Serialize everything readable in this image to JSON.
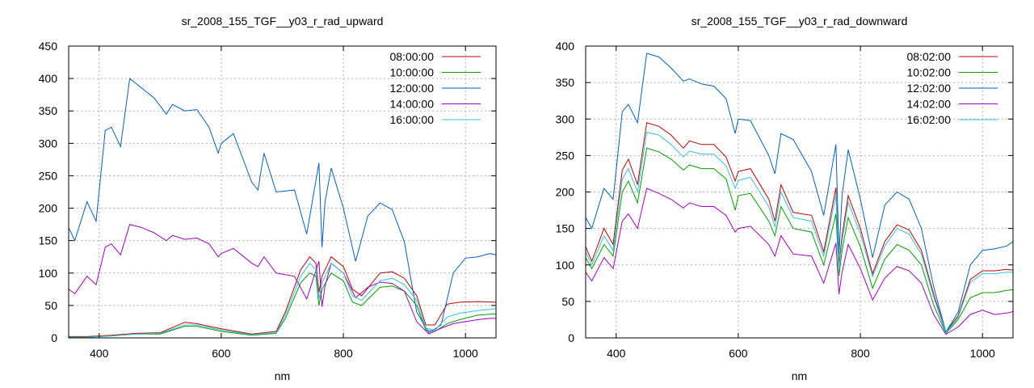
{
  "chart_data": [
    {
      "type": "line",
      "title": "sr_2008_155_TGF__y03_r_rad_upward",
      "xlabel": "nm",
      "ylabel": "",
      "xlim": [
        350,
        1050
      ],
      "ylim": [
        0,
        450
      ],
      "xticks": [
        400,
        600,
        800,
        1000
      ],
      "yticks": [
        0,
        50,
        100,
        150,
        200,
        250,
        300,
        350,
        400,
        450
      ],
      "grid": true,
      "legend": "top-right",
      "series": [
        {
          "name": "08:00:00",
          "color": "#c00000",
          "x": [
            350,
            380,
            420,
            460,
            500,
            540,
            560,
            600,
            650,
            690,
            705,
            730,
            745,
            755,
            760,
            765,
            780,
            800,
            815,
            830,
            860,
            880,
            900,
            920,
            935,
            950,
            970,
            990,
            1020,
            1050
          ],
          "y": [
            2,
            2,
            4,
            7,
            8,
            24,
            22,
            14,
            6,
            10,
            40,
            105,
            125,
            115,
            70,
            95,
            125,
            110,
            75,
            65,
            100,
            102,
            92,
            65,
            20,
            20,
            52,
            55,
            56,
            55
          ]
        },
        {
          "name": "10:00:00",
          "color": "#00a000",
          "x": [
            350,
            380,
            420,
            460,
            500,
            540,
            560,
            600,
            650,
            690,
            705,
            730,
            745,
            755,
            760,
            765,
            780,
            800,
            815,
            830,
            860,
            880,
            900,
            920,
            935,
            950,
            970,
            990,
            1020,
            1050
          ],
          "y": [
            1,
            1,
            3,
            6,
            6,
            18,
            18,
            10,
            4,
            7,
            30,
            85,
            100,
            95,
            50,
            75,
            100,
            88,
            55,
            50,
            78,
            80,
            72,
            50,
            12,
            10,
            22,
            28,
            35,
            37
          ]
        },
        {
          "name": "12:00:00",
          "color": "#0060c0",
          "x": [
            350,
            360,
            380,
            395,
            410,
            420,
            435,
            450,
            470,
            490,
            510,
            520,
            540,
            560,
            580,
            595,
            600,
            620,
            650,
            660,
            670,
            690,
            720,
            740,
            760,
            765,
            770,
            780,
            800,
            820,
            840,
            860,
            880,
            900,
            920,
            940,
            960,
            980,
            1000,
            1020,
            1040,
            1050
          ],
          "y": [
            170,
            150,
            210,
            180,
            320,
            325,
            295,
            400,
            385,
            370,
            345,
            360,
            350,
            352,
            325,
            285,
            300,
            315,
            240,
            228,
            285,
            225,
            228,
            160,
            270,
            140,
            210,
            262,
            200,
            118,
            188,
            208,
            198,
            148,
            40,
            8,
            20,
            100,
            123,
            125,
            130,
            128
          ]
        },
        {
          "name": "14:00:00",
          "color": "#a000c0",
          "x": [
            350,
            360,
            380,
            395,
            410,
            420,
            435,
            450,
            470,
            490,
            510,
            520,
            540,
            560,
            580,
            595,
            600,
            620,
            650,
            660,
            670,
            690,
            720,
            740,
            760,
            765,
            770,
            780,
            800,
            820,
            840,
            860,
            880,
            900,
            920,
            940,
            960,
            980,
            1000,
            1020,
            1040,
            1050
          ],
          "y": [
            75,
            68,
            95,
            82,
            140,
            145,
            128,
            175,
            170,
            162,
            150,
            158,
            152,
            154,
            145,
            125,
            130,
            138,
            115,
            110,
            125,
            100,
            95,
            60,
            118,
            48,
            80,
            115,
            100,
            62,
            78,
            86,
            84,
            72,
            25,
            6,
            15,
            22,
            25,
            28,
            30,
            30
          ]
        },
        {
          "name": "16:00:00",
          "color": "#30c0e8",
          "x": [
            350,
            380,
            420,
            460,
            500,
            540,
            560,
            600,
            650,
            690,
            705,
            730,
            745,
            755,
            760,
            765,
            780,
            800,
            815,
            830,
            860,
            880,
            900,
            920,
            935,
            950,
            970,
            990,
            1020,
            1050
          ],
          "y": [
            1,
            1,
            3,
            6,
            7,
            20,
            20,
            12,
            5,
            8,
            35,
            95,
            115,
            105,
            60,
            85,
            115,
            100,
            65,
            58,
            88,
            92,
            82,
            58,
            15,
            12,
            32,
            38,
            42,
            45
          ]
        }
      ]
    },
    {
      "type": "line",
      "title": "sr_2008_155_TGF__y03_r_rad_downward",
      "xlabel": "nm",
      "ylabel": "",
      "xlim": [
        350,
        1050
      ],
      "ylim": [
        0,
        400
      ],
      "xticks": [
        400,
        600,
        800,
        1000
      ],
      "yticks": [
        0,
        50,
        100,
        150,
        200,
        250,
        300,
        350,
        400
      ],
      "grid": true,
      "legend": "top-right",
      "series": [
        {
          "name": "08:02:00",
          "color": "#c00000",
          "x": [
            350,
            360,
            380,
            395,
            410,
            420,
            435,
            450,
            470,
            490,
            510,
            520,
            540,
            560,
            580,
            595,
            600,
            620,
            650,
            660,
            670,
            690,
            720,
            740,
            760,
            765,
            770,
            780,
            800,
            820,
            840,
            860,
            880,
            900,
            920,
            940,
            960,
            980,
            1000,
            1020,
            1040,
            1050
          ],
          "y": [
            125,
            105,
            150,
            128,
            230,
            245,
            210,
            295,
            290,
            278,
            260,
            270,
            265,
            265,
            248,
            215,
            228,
            232,
            190,
            160,
            210,
            172,
            168,
            118,
            206,
            100,
            140,
            195,
            150,
            88,
            132,
            155,
            148,
            120,
            60,
            8,
            30,
            80,
            92,
            92,
            94,
            93
          ]
        },
        {
          "name": "10:02:00",
          "color": "#00a000",
          "x": [
            350,
            360,
            380,
            395,
            410,
            420,
            435,
            450,
            470,
            490,
            510,
            520,
            540,
            560,
            580,
            595,
            600,
            620,
            650,
            660,
            670,
            690,
            720,
            740,
            760,
            765,
            770,
            780,
            800,
            820,
            840,
            860,
            880,
            900,
            920,
            940,
            960,
            980,
            1000,
            1020,
            1040,
            1050
          ],
          "y": [
            110,
            95,
            128,
            112,
            200,
            215,
            185,
            260,
            255,
            245,
            230,
            237,
            232,
            232,
            218,
            175,
            195,
            198,
            160,
            140,
            180,
            150,
            145,
            100,
            170,
            85,
            120,
            165,
            125,
            68,
            108,
            128,
            120,
            100,
            45,
            6,
            25,
            55,
            62,
            62,
            65,
            66
          ]
        },
        {
          "name": "12:02:00",
          "color": "#0060c0",
          "x": [
            350,
            360,
            380,
            395,
            410,
            420,
            435,
            450,
            470,
            490,
            510,
            520,
            540,
            560,
            580,
            595,
            600,
            620,
            650,
            660,
            670,
            690,
            720,
            740,
            760,
            765,
            770,
            780,
            800,
            820,
            840,
            860,
            880,
            900,
            920,
            940,
            960,
            980,
            1000,
            1020,
            1040,
            1050
          ],
          "y": [
            165,
            150,
            205,
            190,
            310,
            320,
            295,
            390,
            385,
            370,
            352,
            355,
            348,
            345,
            328,
            280,
            300,
            298,
            250,
            225,
            280,
            272,
            228,
            168,
            265,
            115,
            195,
            258,
            190,
            110,
            182,
            200,
            190,
            150,
            70,
            8,
            35,
            100,
            120,
            122,
            126,
            132
          ]
        },
        {
          "name": "14:02:00",
          "color": "#a000c0",
          "x": [
            350,
            360,
            380,
            395,
            410,
            420,
            435,
            450,
            470,
            490,
            510,
            520,
            540,
            560,
            580,
            595,
            600,
            620,
            650,
            660,
            670,
            690,
            720,
            740,
            760,
            765,
            770,
            780,
            800,
            820,
            840,
            860,
            880,
            900,
            920,
            940,
            960,
            980,
            1000,
            1020,
            1040,
            1050
          ],
          "y": [
            90,
            78,
            110,
            95,
            160,
            170,
            150,
            205,
            198,
            190,
            178,
            185,
            180,
            180,
            168,
            145,
            150,
            153,
            128,
            112,
            140,
            115,
            112,
            75,
            130,
            60,
            90,
            128,
            95,
            52,
            82,
            98,
            92,
            75,
            32,
            5,
            15,
            32,
            38,
            32,
            34,
            36
          ]
        },
        {
          "name": "16:02:00",
          "color": "#30c0e8",
          "x": [
            350,
            360,
            380,
            395,
            410,
            420,
            435,
            450,
            470,
            490,
            510,
            520,
            540,
            560,
            580,
            595,
            600,
            620,
            650,
            660,
            670,
            690,
            720,
            740,
            760,
            765,
            770,
            780,
            800,
            820,
            840,
            860,
            880,
            900,
            920,
            940,
            960,
            980,
            1000,
            1020,
            1040,
            1050
          ],
          "y": [
            118,
            100,
            140,
            120,
            218,
            232,
            200,
            282,
            278,
            265,
            248,
            256,
            252,
            252,
            236,
            205,
            216,
            220,
            180,
            152,
            200,
            165,
            160,
            112,
            196,
            95,
            133,
            186,
            143,
            84,
            126,
            150,
            142,
            115,
            56,
            7,
            28,
            76,
            88,
            88,
            90,
            90
          ]
        }
      ]
    }
  ]
}
